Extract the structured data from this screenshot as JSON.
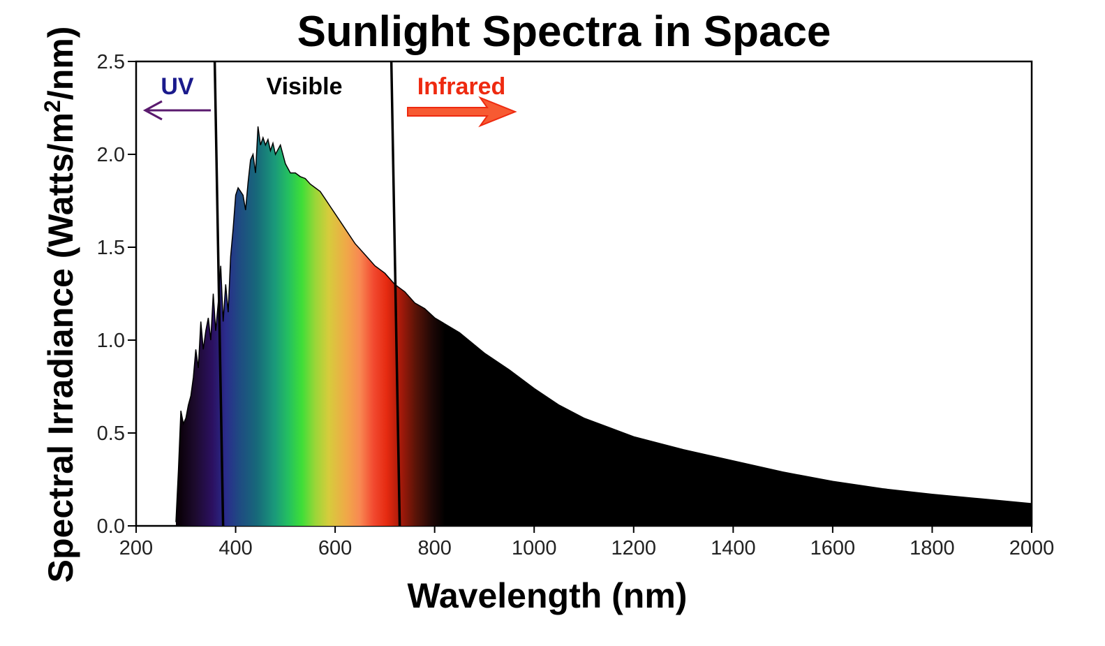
{
  "chart_data": {
    "type": "area",
    "title": "Sunlight Spectra in Space",
    "xlabel": "Wavelength (nm)",
    "ylabel": "Spectral Irradiance (Watts/m2/nm)",
    "ylabel_parts": {
      "before": "Spectral Irradiance (Watts/m",
      "sup": "2",
      "after": "/nm)"
    },
    "xlim": [
      200,
      2000
    ],
    "ylim": [
      0,
      2.5
    ],
    "x_ticks": [
      200,
      400,
      600,
      800,
      1000,
      1200,
      1400,
      1600,
      1800,
      2000
    ],
    "y_ticks": [
      0.0,
      0.5,
      1.0,
      1.5,
      2.0,
      2.5
    ],
    "x_tick_labels": [
      "200",
      "400",
      "600",
      "800",
      "1000",
      "1200",
      "1400",
      "1600",
      "1800",
      "2000"
    ],
    "y_tick_labels": [
      "0.0",
      "0.5",
      "1.0",
      "1.5",
      "2.0",
      "2.5"
    ],
    "grid": false,
    "x": [
      280,
      285,
      290,
      295,
      300,
      305,
      310,
      315,
      320,
      325,
      330,
      335,
      340,
      345,
      350,
      355,
      360,
      365,
      370,
      375,
      380,
      385,
      390,
      395,
      400,
      405,
      410,
      415,
      420,
      425,
      430,
      435,
      440,
      445,
      450,
      455,
      460,
      465,
      470,
      475,
      480,
      490,
      500,
      510,
      520,
      530,
      540,
      550,
      560,
      570,
      580,
      590,
      600,
      620,
      640,
      660,
      680,
      700,
      720,
      740,
      760,
      780,
      800,
      850,
      900,
      950,
      1000,
      1050,
      1100,
      1150,
      1200,
      1300,
      1400,
      1500,
      1600,
      1700,
      1800,
      1900,
      2000
    ],
    "values": [
      0.02,
      0.3,
      0.62,
      0.55,
      0.58,
      0.65,
      0.7,
      0.8,
      0.95,
      0.85,
      1.1,
      0.95,
      1.05,
      1.12,
      1.0,
      1.25,
      1.05,
      1.2,
      1.4,
      1.1,
      1.3,
      1.15,
      1.45,
      1.6,
      1.78,
      1.82,
      1.8,
      1.78,
      1.7,
      1.85,
      1.97,
      2.0,
      1.9,
      2.15,
      2.05,
      2.09,
      2.05,
      2.08,
      2.02,
      2.06,
      2.0,
      2.05,
      1.95,
      1.9,
      1.9,
      1.88,
      1.87,
      1.84,
      1.82,
      1.8,
      1.76,
      1.72,
      1.68,
      1.6,
      1.52,
      1.46,
      1.4,
      1.36,
      1.3,
      1.26,
      1.2,
      1.17,
      1.12,
      1.04,
      0.93,
      0.84,
      0.74,
      0.65,
      0.58,
      0.53,
      0.48,
      0.41,
      0.35,
      0.29,
      0.24,
      0.2,
      0.17,
      0.145,
      0.12
    ],
    "regions": [
      {
        "label": "UV",
        "color": "#1a1a8c",
        "boundary": 365,
        "arrow": "left",
        "arrow_color": "#5a1a6e"
      },
      {
        "label": "Visible",
        "color": "#000000",
        "boundary": 720
      },
      {
        "label": "Infrared",
        "color": "#ee2a10",
        "arrow": "right",
        "arrow_color": "#ee2a10"
      }
    ]
  }
}
